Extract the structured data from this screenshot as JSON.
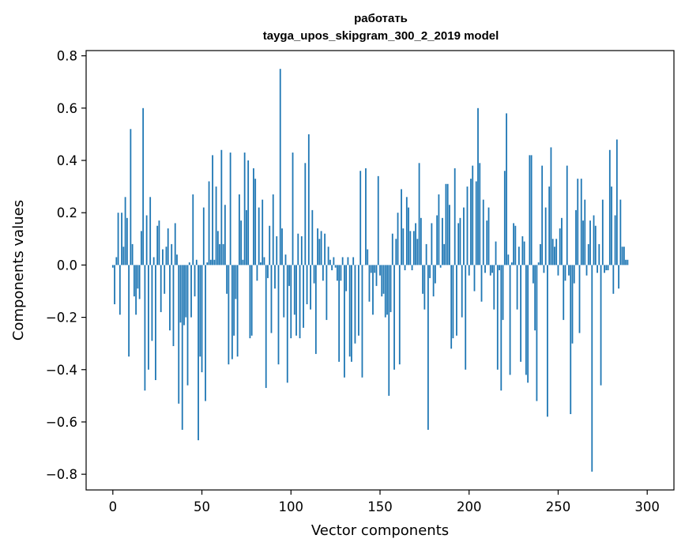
{
  "chart_data": {
    "type": "bar",
    "title_line1": "работать",
    "title_line2": "tayga_upos_skipgram_300_2_2019 model",
    "xlabel": "Vector components",
    "ylabel": "Components values",
    "xlim": [
      -15,
      315
    ],
    "ylim": [
      -0.86,
      0.82
    ],
    "xticks": [
      0,
      50,
      100,
      150,
      200,
      250,
      300
    ],
    "xtick_labels": [
      "0",
      "50",
      "100",
      "150",
      "200",
      "250",
      "300"
    ],
    "yticks": [
      -0.8,
      -0.6,
      -0.4,
      -0.2,
      0.0,
      0.2,
      0.4,
      0.6,
      0.8
    ],
    "ytick_labels": [
      "−0.8",
      "−0.6",
      "−0.4",
      "−0.2",
      "0.0",
      "0.2",
      "0.4",
      "0.6",
      "0.8"
    ],
    "grid": false,
    "bar_color": "#1f77b4",
    "values": [
      -0.01,
      -0.15,
      0.03,
      0.2,
      -0.19,
      0.2,
      0.07,
      0.26,
      0.18,
      -0.35,
      0.52,
      0.08,
      -0.12,
      -0.19,
      -0.09,
      -0.13,
      0.13,
      0.6,
      -0.48,
      0.19,
      -0.4,
      0.26,
      -0.29,
      0.03,
      -0.44,
      0.15,
      0.17,
      -0.18,
      0.06,
      -0.11,
      0.07,
      0.14,
      -0.25,
      0.08,
      -0.31,
      0.16,
      0.04,
      -0.53,
      -0.22,
      -0.63,
      -0.23,
      -0.2,
      -0.46,
      0.01,
      -0.2,
      0.27,
      -0.12,
      0.02,
      -0.67,
      -0.35,
      -0.41,
      0.22,
      -0.52,
      0.01,
      0.32,
      0.02,
      0.42,
      0.02,
      0.3,
      0.13,
      0.08,
      0.44,
      0.08,
      0.23,
      -0.11,
      -0.38,
      0.43,
      -0.36,
      -0.27,
      -0.13,
      -0.35,
      0.27,
      0.17,
      0.02,
      0.43,
      0.21,
      0.4,
      -0.28,
      -0.27,
      0.37,
      0.33,
      -0.06,
      0.22,
      0.01,
      0.25,
      0.03,
      -0.47,
      -0.05,
      0.15,
      -0.26,
      0.27,
      -0.09,
      0.11,
      -0.38,
      0.75,
      0.14,
      -0.2,
      0.04,
      -0.45,
      -0.08,
      -0.28,
      0.43,
      -0.19,
      -0.27,
      0.12,
      -0.28,
      0.11,
      -0.24,
      0.39,
      -0.15,
      0.5,
      -0.17,
      0.21,
      -0.07,
      -0.34,
      0.14,
      0.1,
      0.13,
      -0.06,
      0.12,
      -0.21,
      0.07,
      0.02,
      -0.02,
      0.03,
      -0.01,
      -0.06,
      -0.37,
      -0.06,
      0.03,
      -0.43,
      -0.1,
      0.03,
      -0.35,
      -0.37,
      0.03,
      -0.3,
      0.0,
      -0.27,
      0.36,
      -0.43,
      0.0,
      0.37,
      0.06,
      -0.14,
      -0.03,
      -0.19,
      -0.03,
      -0.08,
      0.34,
      -0.04,
      -0.12,
      -0.11,
      -0.2,
      -0.19,
      -0.5,
      -0.18,
      0.12,
      -0.4,
      0.1,
      0.2,
      -0.38,
      0.29,
      0.14,
      -0.02,
      0.26,
      0.22,
      0.13,
      -0.02,
      0.13,
      0.16,
      0.1,
      0.39,
      0.18,
      -0.11,
      -0.17,
      0.08,
      -0.63,
      -0.05,
      0.16,
      -0.12,
      -0.07,
      0.19,
      0.27,
      -0.01,
      0.18,
      0.08,
      0.31,
      0.31,
      0.23,
      -0.32,
      -0.28,
      0.37,
      -0.27,
      0.16,
      0.18,
      -0.2,
      0.22,
      -0.4,
      0.3,
      -0.04,
      0.33,
      0.38,
      -0.1,
      0.32,
      0.6,
      0.39,
      -0.14,
      0.25,
      -0.03,
      0.17,
      0.22,
      -0.04,
      -0.03,
      -0.17,
      0.09,
      -0.4,
      -0.02,
      -0.48,
      -0.21,
      0.36,
      0.58,
      0.04,
      -0.42,
      0.01,
      0.16,
      0.15,
      -0.17,
      0.07,
      -0.37,
      0.11,
      0.09,
      -0.42,
      -0.45,
      0.42,
      0.42,
      -0.07,
      -0.25,
      -0.52,
      0.01,
      0.08,
      0.38,
      -0.03,
      0.22,
      -0.58,
      0.3,
      0.45,
      0.1,
      0.07,
      0.1,
      -0.04,
      0.14,
      0.18,
      -0.21,
      -0.06,
      0.38,
      -0.04,
      -0.57,
      -0.3,
      -0.07,
      0.21,
      0.33,
      -0.26,
      0.33,
      0.17,
      0.25,
      -0.04,
      0.08,
      0.17,
      -0.79,
      0.19,
      0.15,
      -0.03,
      0.08,
      -0.46,
      0.25,
      -0.03,
      -0.02,
      -0.02,
      0.44,
      0.3,
      -0.11,
      0.19,
      0.48,
      -0.09,
      0.25,
      0.07,
      0.07,
      0.02,
      0.02
    ]
  }
}
